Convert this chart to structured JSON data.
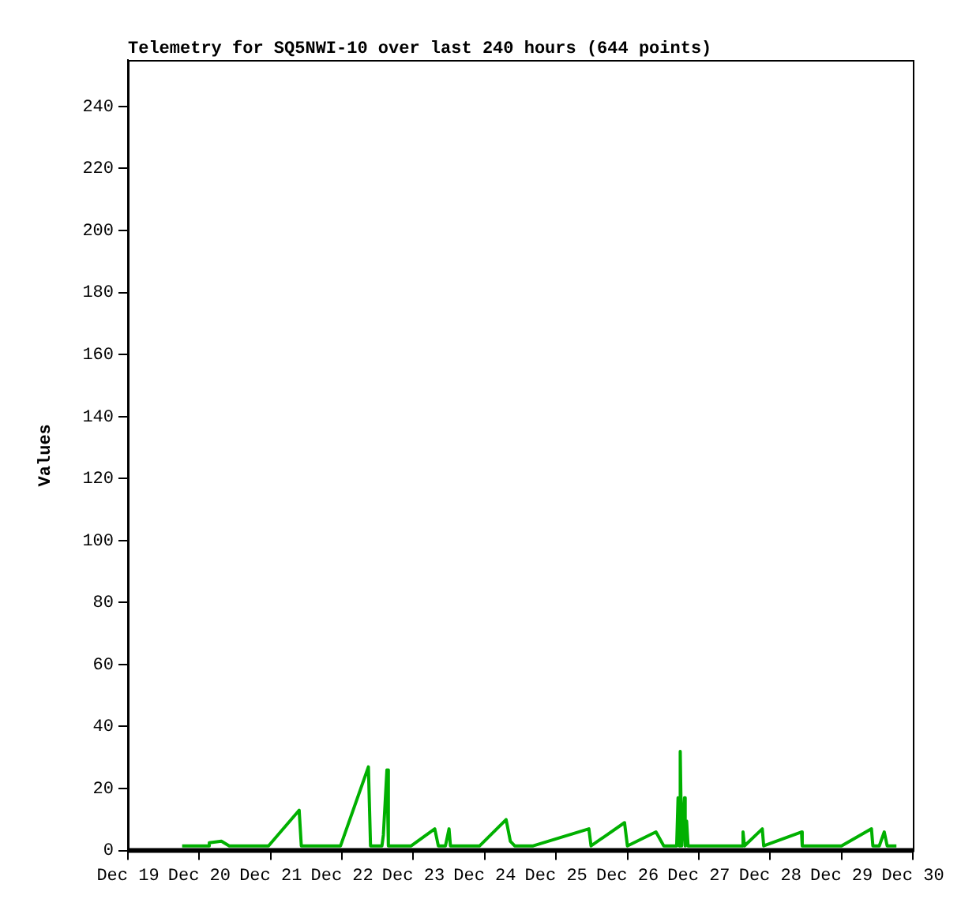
{
  "chart_data": {
    "type": "line",
    "title": "Telemetry for SQ5NWI-10 over last 240 hours (644 points)",
    "ylabel": "Values",
    "xlim": [
      "--12-19",
      "--12-30"
    ],
    "xticks": [
      {
        "value": "--12-19",
        "label": "Dec 19"
      },
      {
        "value": "--12-20",
        "label": "Dec 20"
      },
      {
        "value": "--12-21",
        "label": "Dec 21"
      },
      {
        "value": "--12-22",
        "label": "Dec 22"
      },
      {
        "value": "--12-23",
        "label": "Dec 23"
      },
      {
        "value": "--12-24",
        "label": "Dec 24"
      },
      {
        "value": "--12-25",
        "label": "Dec 25"
      },
      {
        "value": "--12-26",
        "label": "Dec 26"
      },
      {
        "value": "--12-27",
        "label": "Dec 27"
      },
      {
        "value": "--12-28",
        "label": "Dec 28"
      },
      {
        "value": "--12-29",
        "label": "Dec 29"
      },
      {
        "value": "--12-30",
        "label": "Dec 30"
      }
    ],
    "ylim": [
      0,
      255
    ],
    "yticks": [
      0,
      20,
      40,
      60,
      80,
      100,
      120,
      140,
      160,
      180,
      200,
      220,
      240
    ],
    "grid": false,
    "legend": false,
    "marker": "none",
    "line_style": "solid",
    "series": [
      {
        "color": "#00b000",
        "x": [
          "--12-19T18:14",
          "--12-20T03:07",
          "--12-20T03:22",
          "--12-20T07:26",
          "--12-20T10:05",
          "--12-20T23:17",
          "--12-21T09:36",
          "--12-21T10:19",
          "--12-21T23:31",
          "--12-22T08:53",
          "--12-22T09:36",
          "--12-22T13:26",
          "--12-22T13:55",
          "--12-22T15:07",
          "--12-22T15:36",
          "--12-22T23:17",
          "--12-23T07:12",
          "--12-23T08:24",
          "--12-23T10:48",
          "--12-23T12:00",
          "--12-23T12:29",
          "--12-23T22:19",
          "--12-24T07:12",
          "--12-24T08:38",
          "--12-24T10:05",
          "--12-24T16:19",
          "--12-25T11:02",
          "--12-25T11:46",
          "--12-25T23:02",
          "--12-26T00:00",
          "--12-26T09:36",
          "--12-26T12:14",
          "--12-26T16:34",
          "--12-26T17:02",
          "--12-26T17:31",
          "--12-26T17:46",
          "--12-26T18:14",
          "--12-26T18:43",
          "--12-26T19:12",
          "--12-26T19:26",
          "--12-26T19:55",
          "--12-26T20:24",
          "--12-27T14:38",
          "--12-27T14:53",
          "--12-27T15:22",
          "--12-27T21:22",
          "--12-27T21:50",
          "--12-28T10:34",
          "--12-28T10:48",
          "--12-29T00:00",
          "--12-29T10:05",
          "--12-29T10:34",
          "--12-29T12:43",
          "--12-29T14:24",
          "--12-29T15:22",
          "--12-29T18:29"
        ],
        "values": [
          1.5,
          1.5,
          2.5,
          3,
          1.5,
          1.5,
          13,
          1.5,
          1.5,
          27,
          1.5,
          1.5,
          5,
          26,
          1.5,
          1.5,
          7,
          1.5,
          1.5,
          7,
          1.5,
          1.5,
          10,
          3,
          1.5,
          1.5,
          7,
          1.5,
          9,
          1.5,
          6,
          1.5,
          1.5,
          17,
          1.5,
          32,
          1.5,
          9.5,
          17,
          1.5,
          9.5,
          1.5,
          1.5,
          6,
          1.5,
          7,
          1.5,
          6,
          1.5,
          1.5,
          7,
          1.5,
          1.5,
          6,
          1.5,
          1.5
        ]
      }
    ]
  }
}
